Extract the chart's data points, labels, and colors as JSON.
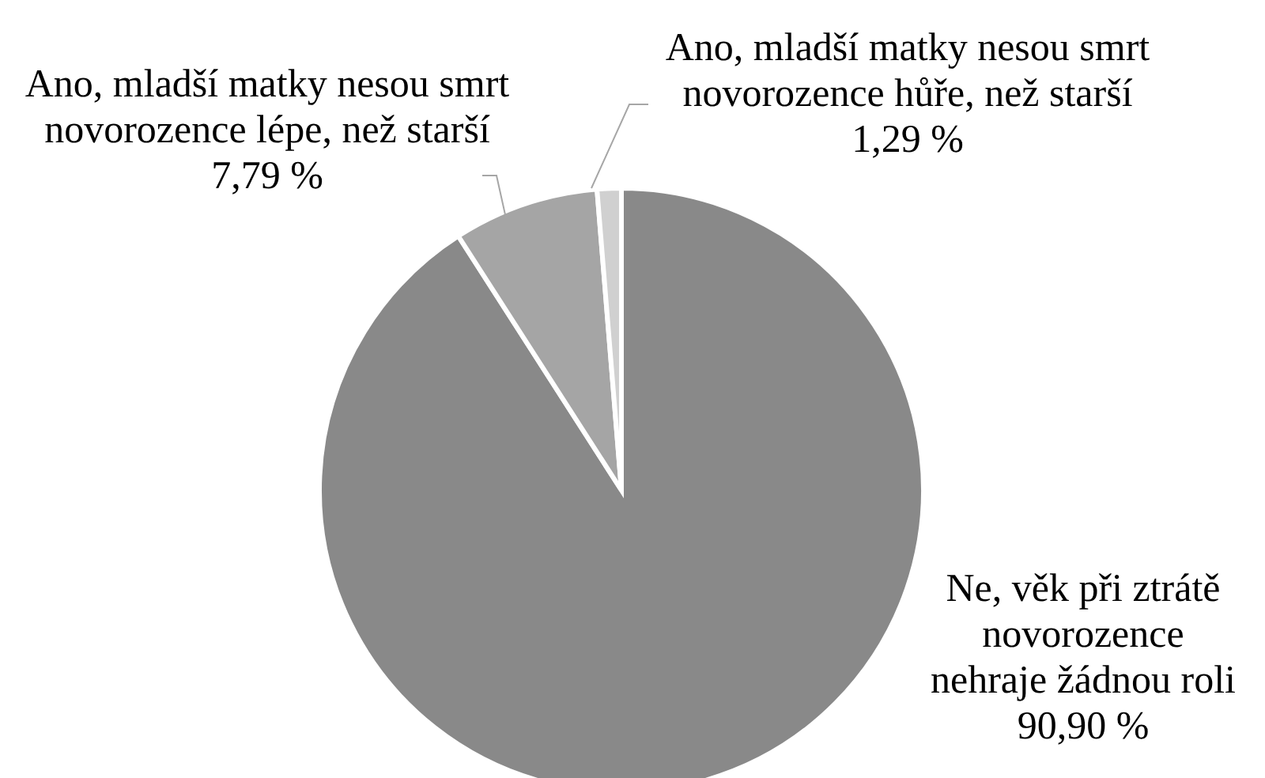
{
  "chart_data": {
    "type": "pie",
    "categories": [
      "Ne, věk při ztrátě novorozence nehraje žádnou roli",
      "Ano, mladší matky nesou smrt novorozence lépe, než starší",
      "Ano, mladší matky nesou smrt novorozence hůře, než starší"
    ],
    "values": [
      90.9,
      7.79,
      1.29
    ],
    "value_labels": [
      "90,90 %",
      "7,79 %",
      "1,29 %"
    ],
    "colors": [
      "#898989",
      "#a5a5a5",
      "#d0d0d0"
    ]
  }
}
